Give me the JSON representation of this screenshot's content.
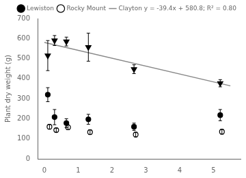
{
  "chart_data": {
    "type": "scatter",
    "title": "",
    "ylabel": "Plant dry weight (g)",
    "xlim": [
      -0.2,
      5.8
    ],
    "ylim": [
      0,
      700
    ],
    "xticks": [
      0,
      1,
      2,
      3,
      4,
      5
    ],
    "yticks": [
      0,
      100,
      200,
      300,
      400,
      500,
      600,
      700
    ],
    "grid": false,
    "legend": "upper right",
    "series": [
      {
        "name": "Lewiston",
        "color": "#000000",
        "marker": "circle",
        "x": [
          0.1,
          0.3,
          0.65,
          1.3,
          2.65,
          5.2
        ],
        "values": [
          320,
          208,
          178,
          197,
          160,
          218
        ],
        "errors": [
          35,
          38,
          22,
          25,
          18,
          28
        ]
      },
      {
        "name": "Rocky Mount",
        "color": "#000000",
        "marker": "open_circle",
        "x": [
          0.15,
          0.35,
          0.7,
          1.35,
          2.7,
          5.25
        ],
        "values": [
          160,
          143,
          157,
          133,
          121,
          135
        ],
        "errors": [
          12,
          10,
          12,
          12,
          12,
          12
        ]
      },
      {
        "name": "Clayton y = -39.4x + 580.8; R² = 0.80",
        "color": "#888888",
        "type": "line",
        "line_style": "solid",
        "x": [
          0.0,
          5.5
        ],
        "values": [
          580.8,
          364.1
        ]
      },
      {
        "color": "#000000",
        "marker": "triangle_down",
        "x": [
          0.1,
          0.3,
          0.65,
          1.3,
          2.65,
          5.2
        ],
        "values": [
          515,
          590,
          585,
          557,
          447,
          377
        ],
        "errors": [
          75,
          25,
          22,
          70,
          22,
          18
        ]
      }
    ]
  }
}
